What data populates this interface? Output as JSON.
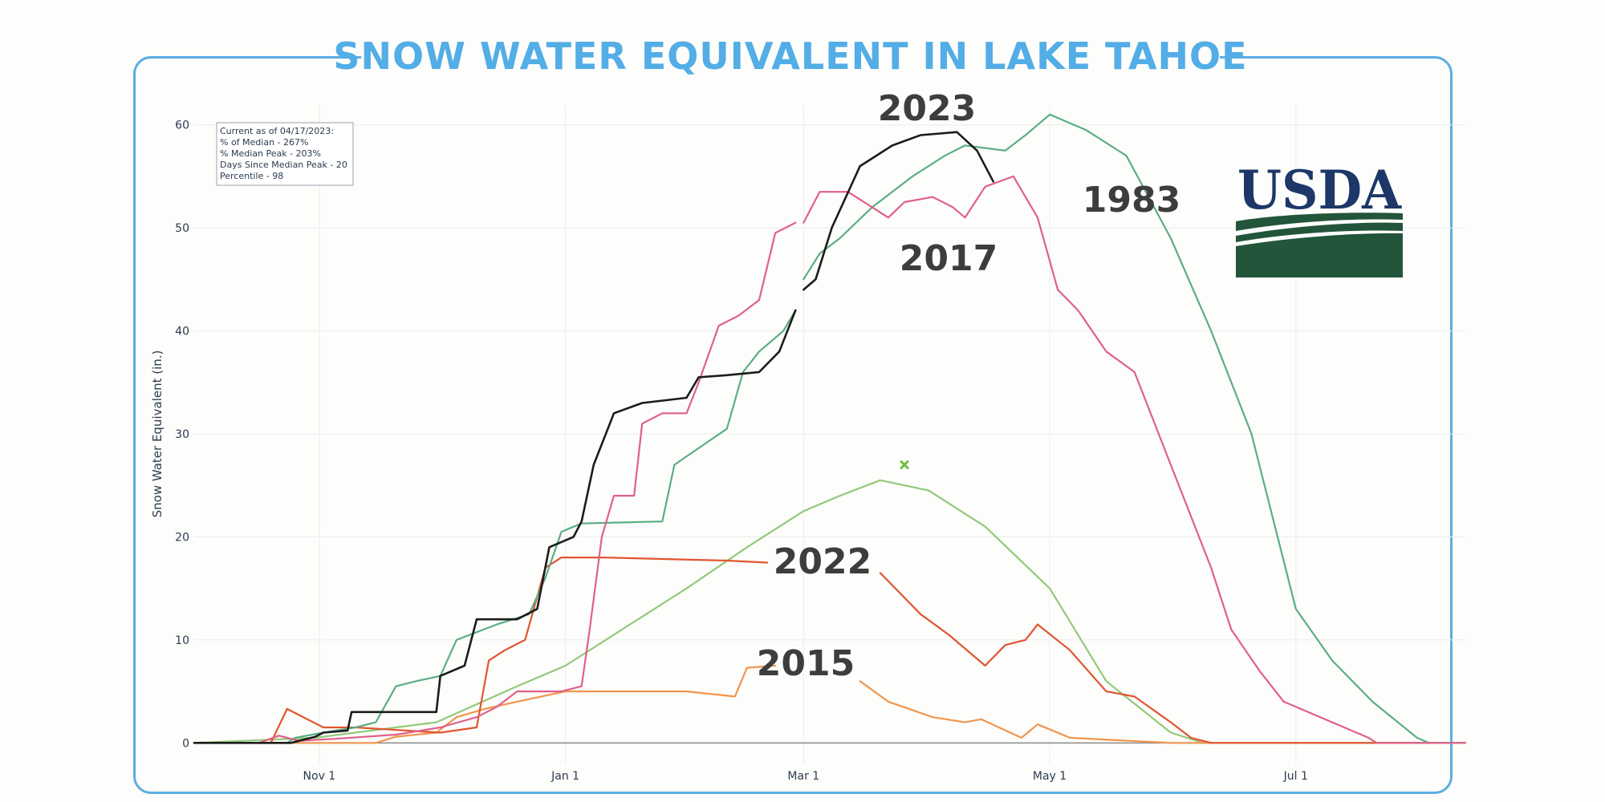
{
  "chart_data": {
    "type": "line",
    "title": "SNOW WATER EQUIVALENT IN LAKE TAHOE",
    "ylabel": "Snow Water Equivalent (in.)",
    "xlabel": "",
    "x_axis": {
      "type": "date",
      "range": [
        "2022-10-01",
        "2023-08-12"
      ],
      "ticks": [
        {
          "date": "2022-11-01",
          "label": "Nov 1"
        },
        {
          "date": "2023-01-01",
          "label": "Jan 1"
        },
        {
          "date": "2023-03-01",
          "label": "Mar 1"
        },
        {
          "date": "2023-05-01",
          "label": "May 1"
        },
        {
          "date": "2023-07-01",
          "label": "Jul 1"
        }
      ]
    },
    "y_axis": {
      "range": [
        -2,
        62
      ],
      "ticks": [
        0,
        10,
        20,
        30,
        40,
        50,
        60
      ]
    },
    "grid": true,
    "info_box": {
      "lines": [
        "Current as of 04/17/2023:",
        "% of Median - 267%",
        "% Median Peak - 203%",
        "Days Since Median Peak - 20",
        "Percentile - 98"
      ]
    },
    "annotations": [
      "2023",
      "1983",
      "2017",
      "2022",
      "2015"
    ],
    "marker": {
      "date": "2023-03-26",
      "value": 27,
      "color": "#6abf40"
    },
    "series": [
      {
        "label": "2023",
        "color": "#1c1c1c",
        "width": 2.6,
        "segments": [
          [
            [
              "2022-10-01",
              0
            ],
            [
              "2022-10-25",
              0
            ],
            [
              "2022-10-31",
              0.6
            ],
            [
              "2022-11-02",
              1
            ],
            [
              "2022-11-08",
              1.2
            ],
            [
              "2022-11-09",
              3
            ],
            [
              "2022-11-30",
              3
            ],
            [
              "2022-12-01",
              6.5
            ],
            [
              "2022-12-07",
              7.5
            ],
            [
              "2022-12-10",
              12
            ],
            [
              "2022-12-20",
              12
            ],
            [
              "2022-12-25",
              13
            ],
            [
              "2022-12-28",
              19
            ],
            [
              "2023-01-03",
              20
            ],
            [
              "2023-01-05",
              21.5
            ],
            [
              "2023-01-08",
              27
            ],
            [
              "2023-01-13",
              32
            ],
            [
              "2023-01-20",
              33
            ],
            [
              "2023-01-31",
              33.5
            ],
            [
              "2023-02-03",
              35.5
            ],
            [
              "2023-02-10",
              35.7
            ],
            [
              "2023-02-18",
              36
            ],
            [
              "2023-02-23",
              38
            ],
            [
              "2023-02-27",
              42
            ]
          ],
          [
            [
              "2023-03-01",
              44
            ],
            [
              "2023-03-04",
              45
            ],
            [
              "2023-03-08",
              50
            ],
            [
              "2023-03-15",
              56
            ],
            [
              "2023-03-23",
              58
            ],
            [
              "2023-03-30",
              59
            ],
            [
              "2023-04-08",
              59.3
            ],
            [
              "2023-04-13",
              57.5
            ],
            [
              "2023-04-17",
              54.5
            ]
          ]
        ]
      },
      {
        "label": "2017",
        "color": "#e0608a",
        "width": 2.2,
        "segments": [
          [
            [
              "2016-10-01",
              0
            ],
            [
              "2016-10-17",
              0
            ],
            [
              "2016-10-22",
              0.7
            ],
            [
              "2016-10-27",
              0.2
            ],
            [
              "2016-11-05",
              0.4
            ],
            [
              "2016-11-20",
              0.8
            ],
            [
              "2016-12-01",
              1.5
            ],
            [
              "2016-12-10",
              2.5
            ],
            [
              "2016-12-15",
              3.5
            ],
            [
              "2016-12-20",
              5
            ],
            [
              "2016-12-31",
              5
            ],
            [
              "2017-01-05",
              5.5
            ],
            [
              "2017-01-07",
              11
            ],
            [
              "2017-01-10",
              20
            ],
            [
              "2017-01-13",
              24
            ],
            [
              "2017-01-18",
              24
            ],
            [
              "2017-01-20",
              31
            ],
            [
              "2017-01-25",
              32
            ],
            [
              "2017-01-31",
              32
            ],
            [
              "2017-02-03",
              35
            ],
            [
              "2017-02-08",
              40.5
            ],
            [
              "2017-02-13",
              41.5
            ],
            [
              "2017-02-18",
              43
            ],
            [
              "2017-02-22",
              49.5
            ],
            [
              "2017-02-27",
              50.5
            ]
          ],
          [
            [
              "2017-03-01",
              50.5
            ],
            [
              "2017-03-05",
              53.5
            ],
            [
              "2017-03-12",
              53.5
            ],
            [
              "2017-03-18",
              52
            ],
            [
              "2017-03-22",
              51
            ],
            [
              "2017-03-26",
              52.5
            ],
            [
              "2017-04-02",
              53
            ],
            [
              "2017-04-07",
              52
            ],
            [
              "2017-04-10",
              51
            ],
            [
              "2017-04-15",
              54
            ],
            [
              "2017-04-22",
              55
            ],
            [
              "2017-04-28",
              51
            ],
            [
              "2017-05-03",
              44
            ],
            [
              "2017-05-08",
              42
            ],
            [
              "2017-05-15",
              38
            ],
            [
              "2017-05-22",
              36
            ],
            [
              "2017-05-31",
              27
            ],
            [
              "2017-06-10",
              17
            ],
            [
              "2017-06-15",
              11
            ],
            [
              "2017-06-22",
              7
            ],
            [
              "2017-06-28",
              4
            ],
            [
              "2017-07-10",
              2
            ],
            [
              "2017-07-19",
              0.5
            ],
            [
              "2017-07-21",
              0
            ],
            [
              "2017-08-12",
              0
            ]
          ]
        ]
      },
      {
        "label": "1983",
        "color": "#5aae84",
        "width": 2.2,
        "segments": [
          [
            [
              "1982-10-01",
              0
            ],
            [
              "1982-10-24",
              0
            ],
            [
              "1982-10-26",
              0.5
            ],
            [
              "1982-11-02",
              1
            ],
            [
              "1982-11-10",
              1.5
            ],
            [
              "1982-11-15",
              2
            ],
            [
              "1982-11-20",
              5.5
            ],
            [
              "1982-11-25",
              6
            ],
            [
              "1982-12-01",
              6.5
            ],
            [
              "1982-12-05",
              10
            ],
            [
              "1982-12-15",
              11.5
            ],
            [
              "1982-12-23",
              12.5
            ],
            [
              "1982-12-27",
              16
            ],
            [
              "1982-12-31",
              20.5
            ],
            [
              "1983-01-05",
              21.3
            ],
            [
              "1983-01-25",
              21.5
            ],
            [
              "1983-01-28",
              27
            ],
            [
              "1983-02-10",
              30.5
            ],
            [
              "1983-02-14",
              36
            ],
            [
              "1983-02-18",
              38
            ],
            [
              "1983-02-24",
              40
            ],
            [
              "1983-02-27",
              42
            ]
          ],
          [
            [
              "1983-03-01",
              45
            ],
            [
              "1983-03-05",
              47.5
            ],
            [
              "1983-03-10",
              49
            ],
            [
              "1983-03-18",
              52
            ],
            [
              "1983-03-28",
              55
            ],
            [
              "1983-04-05",
              57
            ],
            [
              "1983-04-10",
              58
            ],
            [
              "1983-04-20",
              57.5
            ],
            [
              "1983-04-25",
              59
            ],
            [
              "1983-05-01",
              61
            ],
            [
              "1983-05-10",
              59.5
            ],
            [
              "1983-05-20",
              57
            ],
            [
              "1983-05-31",
              49
            ],
            [
              "1983-06-10",
              40
            ],
            [
              "1983-06-20",
              30
            ],
            [
              "1983-07-01",
              13
            ],
            [
              "1983-07-10",
              8
            ],
            [
              "1983-07-20",
              4
            ],
            [
              "1983-07-31",
              0.5
            ],
            [
              "1983-08-03",
              0
            ],
            [
              "1983-08-12",
              0
            ]
          ]
        ]
      },
      {
        "label": "2022",
        "color": "#e05530",
        "width": 2.2,
        "segments": [
          [
            [
              "2021-10-01",
              0
            ],
            [
              "2021-10-20",
              0
            ],
            [
              "2021-10-24",
              3.3
            ],
            [
              "2021-11-02",
              1.5
            ],
            [
              "2021-11-10",
              1.5
            ],
            [
              "2021-12-01",
              1
            ],
            [
              "2021-12-10",
              1.5
            ],
            [
              "2021-12-13",
              8
            ],
            [
              "2021-12-17",
              9
            ],
            [
              "2021-12-22",
              10
            ],
            [
              "2021-12-27",
              17
            ],
            [
              "2021-12-31",
              18
            ],
            [
              "2022-01-10",
              18
            ],
            [
              "2022-02-10",
              17.7
            ],
            [
              "2022-02-20",
              17.5
            ]
          ],
          [
            [
              "2022-03-20",
              16.5
            ],
            [
              "2022-03-30",
              12.5
            ],
            [
              "2022-04-06",
              10.5
            ],
            [
              "2022-04-15",
              7.5
            ],
            [
              "2022-04-20",
              9.5
            ],
            [
              "2022-04-25",
              10
            ],
            [
              "2022-04-28",
              11.5
            ],
            [
              "2022-05-06",
              9
            ],
            [
              "2022-05-15",
              5
            ],
            [
              "2022-05-22",
              4.5
            ],
            [
              "2022-05-31",
              2
            ],
            [
              "2022-06-05",
              0.5
            ],
            [
              "2022-06-10",
              0
            ],
            [
              "2022-08-12",
              0
            ]
          ]
        ]
      },
      {
        "label": "2015",
        "color": "#f0954e",
        "width": 2.2,
        "segments": [
          [
            [
              "2014-10-01",
              0
            ],
            [
              "2014-11-15",
              0
            ],
            [
              "2014-11-20",
              0.6
            ],
            [
              "2014-11-30",
              1
            ],
            [
              "2014-12-05",
              2.5
            ],
            [
              "2014-12-12",
              3.3
            ],
            [
              "2014-12-20",
              4
            ],
            [
              "2015-01-01",
              5
            ],
            [
              "2015-01-31",
              5
            ],
            [
              "2015-02-12",
              4.5
            ],
            [
              "2015-02-15",
              7.3
            ],
            [
              "2015-02-22",
              7.5
            ]
          ],
          [
            [
              "2015-03-15",
              6
            ],
            [
              "2015-03-22",
              4
            ],
            [
              "2015-04-02",
              2.5
            ],
            [
              "2015-04-10",
              2
            ],
            [
              "2015-04-14",
              2.3
            ],
            [
              "2015-04-24",
              0.5
            ],
            [
              "2015-04-28",
              1.8
            ],
            [
              "2015-05-06",
              0.5
            ],
            [
              "2015-05-16",
              0.3
            ],
            [
              "2015-05-31",
              0
            ],
            [
              "2015-08-12",
              0
            ]
          ]
        ]
      },
      {
        "label": "median",
        "color": "#93c97a",
        "width": 2.2,
        "segments": [
          [
            [
              "2022-10-01",
              0
            ],
            [
              "2022-10-31",
              0.5
            ],
            [
              "2022-11-30",
              2
            ],
            [
              "2022-12-20",
              5.5
            ],
            [
              "2023-01-01",
              7.5
            ],
            [
              "2023-01-15",
              11
            ],
            [
              "2023-01-31",
              15
            ],
            [
              "2023-02-15",
              19
            ],
            [
              "2023-03-01",
              22.5
            ],
            [
              "2023-03-10",
              24
            ],
            [
              "2023-03-20",
              25.5
            ],
            [
              "2023-04-01",
              24.5
            ],
            [
              "2023-04-15",
              21
            ],
            [
              "2023-05-01",
              15
            ],
            [
              "2023-05-15",
              6
            ],
            [
              "2023-05-31",
              1
            ],
            [
              "2023-06-08",
              0
            ],
            [
              "2023-08-12",
              0
            ]
          ]
        ]
      }
    ]
  },
  "logo": {
    "text": "USDA"
  }
}
